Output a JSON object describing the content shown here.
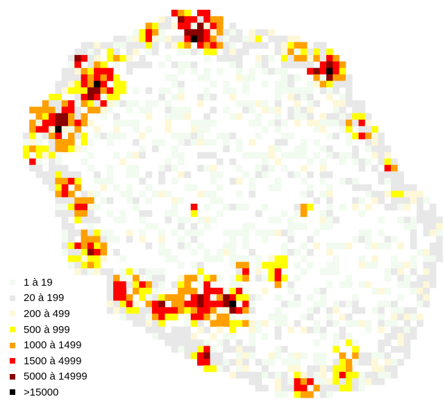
{
  "legend": {
    "classes": [
      {
        "label": "1 à 19",
        "color": "#f2fbf0"
      },
      {
        "label": "20 à 199",
        "color": "#e8e8e8"
      },
      {
        "label": "200 à 499",
        "color": "#fef8d8"
      },
      {
        "label": "500 à 999",
        "color": "#ffff00"
      },
      {
        "label": "1000 à 1499",
        "color": "#ffa000"
      },
      {
        "label": "1500 à 4999",
        "color": "#ff0000"
      },
      {
        "label": "5000 à 14999",
        "color": "#8b0000"
      },
      {
        "label": ">15000",
        "color": "#000000"
      }
    ]
  }
}
